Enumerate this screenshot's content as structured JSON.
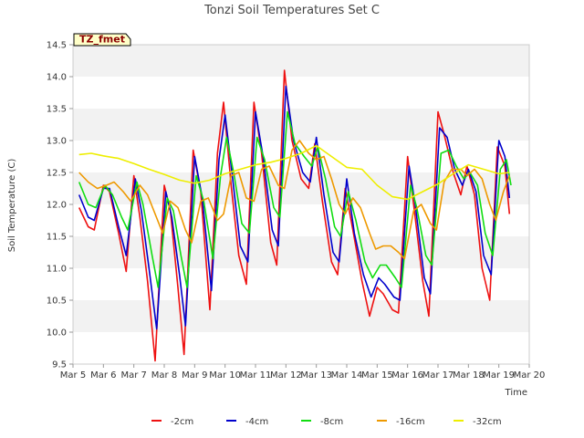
{
  "chart_data": {
    "type": "line",
    "title": "Tonzi Soil Temperatures Set C",
    "xlabel": "Time",
    "ylabel": "Soil Temperature (C)",
    "annotation": "TZ_fmet",
    "xlim": [
      5,
      20
    ],
    "ylim": [
      9.5,
      14.5
    ],
    "grid": "horizontal bands",
    "legend_placement": "bottom",
    "x_ticks": [
      {
        "value": 5,
        "label": "Mar 5"
      },
      {
        "value": 6,
        "label": "Mar 6"
      },
      {
        "value": 7,
        "label": "Mar 7"
      },
      {
        "value": 8,
        "label": "Mar 8"
      },
      {
        "value": 9,
        "label": "Mar 9"
      },
      {
        "value": 10,
        "label": "Mar 10"
      },
      {
        "value": 11,
        "label": "Mar 11"
      },
      {
        "value": 12,
        "label": "Mar 12"
      },
      {
        "value": 13,
        "label": "Mar 13"
      },
      {
        "value": 14,
        "label": "Mar 14"
      },
      {
        "value": 15,
        "label": "Mar 15"
      },
      {
        "value": 16,
        "label": "Mar 16"
      },
      {
        "value": 17,
        "label": "Mar 17"
      },
      {
        "value": 18,
        "label": "Mar 18"
      },
      {
        "value": 19,
        "label": "Mar 19"
      },
      {
        "value": 20,
        "label": "Mar 20"
      }
    ],
    "y_ticks": [
      {
        "value": 9.5,
        "label": "9.5"
      },
      {
        "value": 10.0,
        "label": "10.0"
      },
      {
        "value": 10.5,
        "label": "10.5"
      },
      {
        "value": 11.0,
        "label": "11.0"
      },
      {
        "value": 11.5,
        "label": "11.5"
      },
      {
        "value": 12.0,
        "label": "12.0"
      },
      {
        "value": 12.5,
        "label": "12.5"
      },
      {
        "value": 13.0,
        "label": "13.0"
      },
      {
        "value": 13.5,
        "label": "13.5"
      },
      {
        "value": 14.0,
        "label": "14.0"
      },
      {
        "value": 14.5,
        "label": "14.5"
      }
    ],
    "series": [
      {
        "name": "-2cm",
        "color": "#ee1111",
        "points": [
          [
            5.2,
            11.95
          ],
          [
            5.5,
            11.65
          ],
          [
            5.7,
            11.6
          ],
          [
            6.0,
            12.3
          ],
          [
            6.2,
            12.2
          ],
          [
            6.5,
            11.55
          ],
          [
            6.75,
            10.95
          ],
          [
            7.0,
            12.45
          ],
          [
            7.2,
            11.8
          ],
          [
            7.45,
            10.8
          ],
          [
            7.7,
            9.55
          ],
          [
            8.0,
            12.3
          ],
          [
            8.2,
            11.9
          ],
          [
            8.45,
            10.7
          ],
          [
            8.65,
            9.65
          ],
          [
            8.95,
            12.85
          ],
          [
            9.2,
            12.2
          ],
          [
            9.5,
            10.35
          ],
          [
            9.75,
            12.8
          ],
          [
            9.95,
            13.6
          ],
          [
            10.2,
            12.3
          ],
          [
            10.45,
            11.2
          ],
          [
            10.7,
            10.75
          ],
          [
            10.95,
            13.6
          ],
          [
            11.2,
            12.8
          ],
          [
            11.5,
            11.4
          ],
          [
            11.7,
            11.05
          ],
          [
            11.95,
            14.1
          ],
          [
            12.2,
            13.0
          ],
          [
            12.5,
            12.4
          ],
          [
            12.75,
            12.25
          ],
          [
            12.95,
            12.95
          ],
          [
            13.2,
            12.05
          ],
          [
            13.5,
            11.1
          ],
          [
            13.7,
            10.9
          ],
          [
            13.95,
            12.25
          ],
          [
            14.2,
            11.6
          ],
          [
            14.5,
            10.8
          ],
          [
            14.75,
            10.25
          ],
          [
            15.0,
            10.7
          ],
          [
            15.2,
            10.6
          ],
          [
            15.5,
            10.35
          ],
          [
            15.7,
            10.3
          ],
          [
            16.0,
            12.75
          ],
          [
            16.2,
            12.0
          ],
          [
            16.5,
            10.8
          ],
          [
            16.7,
            10.25
          ],
          [
            17.0,
            13.45
          ],
          [
            17.2,
            13.1
          ],
          [
            17.5,
            12.5
          ],
          [
            17.75,
            12.15
          ],
          [
            17.95,
            12.6
          ],
          [
            18.2,
            12.15
          ],
          [
            18.45,
            11.0
          ],
          [
            18.7,
            10.5
          ],
          [
            18.95,
            12.9
          ],
          [
            19.2,
            12.6
          ],
          [
            19.35,
            11.85
          ]
        ]
      },
      {
        "name": "-4cm",
        "color": "#0000cc",
        "points": [
          [
            5.2,
            12.15
          ],
          [
            5.5,
            11.8
          ],
          [
            5.7,
            11.75
          ],
          [
            6.0,
            12.25
          ],
          [
            6.2,
            12.25
          ],
          [
            6.5,
            11.65
          ],
          [
            6.75,
            11.2
          ],
          [
            7.05,
            12.4
          ],
          [
            7.25,
            11.9
          ],
          [
            7.5,
            11.0
          ],
          [
            7.75,
            10.05
          ],
          [
            8.05,
            12.2
          ],
          [
            8.25,
            11.8
          ],
          [
            8.5,
            10.9
          ],
          [
            8.7,
            10.1
          ],
          [
            9.0,
            12.75
          ],
          [
            9.25,
            12.1
          ],
          [
            9.55,
            10.65
          ],
          [
            9.8,
            12.7
          ],
          [
            10.0,
            13.4
          ],
          [
            10.25,
            12.4
          ],
          [
            10.5,
            11.35
          ],
          [
            10.75,
            11.1
          ],
          [
            11.0,
            13.45
          ],
          [
            11.25,
            12.75
          ],
          [
            11.55,
            11.6
          ],
          [
            11.75,
            11.35
          ],
          [
            12.0,
            13.85
          ],
          [
            12.25,
            13.0
          ],
          [
            12.55,
            12.5
          ],
          [
            12.8,
            12.35
          ],
          [
            13.0,
            13.05
          ],
          [
            13.25,
            12.15
          ],
          [
            13.55,
            11.25
          ],
          [
            13.75,
            11.1
          ],
          [
            14.0,
            12.4
          ],
          [
            14.25,
            11.55
          ],
          [
            14.55,
            10.9
          ],
          [
            14.8,
            10.55
          ],
          [
            15.05,
            10.85
          ],
          [
            15.25,
            10.75
          ],
          [
            15.55,
            10.55
          ],
          [
            15.75,
            10.5
          ],
          [
            16.05,
            12.6
          ],
          [
            16.25,
            12.0
          ],
          [
            16.55,
            10.85
          ],
          [
            16.75,
            10.6
          ],
          [
            17.05,
            13.2
          ],
          [
            17.3,
            13.05
          ],
          [
            17.55,
            12.55
          ],
          [
            17.8,
            12.3
          ],
          [
            18.0,
            12.55
          ],
          [
            18.25,
            12.2
          ],
          [
            18.5,
            11.2
          ],
          [
            18.75,
            10.9
          ],
          [
            19.0,
            13.0
          ],
          [
            19.2,
            12.75
          ],
          [
            19.35,
            12.1
          ]
        ]
      },
      {
        "name": "-8cm",
        "color": "#11dd11",
        "points": [
          [
            5.2,
            12.35
          ],
          [
            5.5,
            12.0
          ],
          [
            5.75,
            11.95
          ],
          [
            6.05,
            12.3
          ],
          [
            6.3,
            12.15
          ],
          [
            6.6,
            11.8
          ],
          [
            6.8,
            11.6
          ],
          [
            7.1,
            12.35
          ],
          [
            7.3,
            12.0
          ],
          [
            7.6,
            11.2
          ],
          [
            7.8,
            10.7
          ],
          [
            8.1,
            12.1
          ],
          [
            8.3,
            11.9
          ],
          [
            8.55,
            11.2
          ],
          [
            8.75,
            10.7
          ],
          [
            9.05,
            12.45
          ],
          [
            9.3,
            12.05
          ],
          [
            9.6,
            11.15
          ],
          [
            9.85,
            12.45
          ],
          [
            10.05,
            13.05
          ],
          [
            10.3,
            12.45
          ],
          [
            10.55,
            11.7
          ],
          [
            10.8,
            11.55
          ],
          [
            11.05,
            13.05
          ],
          [
            11.3,
            12.7
          ],
          [
            11.6,
            11.95
          ],
          [
            11.8,
            11.8
          ],
          [
            12.05,
            13.45
          ],
          [
            12.3,
            12.95
          ],
          [
            12.6,
            12.75
          ],
          [
            12.85,
            12.6
          ],
          [
            13.05,
            12.9
          ],
          [
            13.3,
            12.4
          ],
          [
            13.6,
            11.65
          ],
          [
            13.8,
            11.5
          ],
          [
            14.05,
            12.2
          ],
          [
            14.3,
            11.75
          ],
          [
            14.6,
            11.1
          ],
          [
            14.85,
            10.85
          ],
          [
            15.1,
            11.05
          ],
          [
            15.3,
            11.05
          ],
          [
            15.6,
            10.85
          ],
          [
            15.8,
            10.7
          ],
          [
            16.1,
            12.3
          ],
          [
            16.3,
            11.95
          ],
          [
            16.6,
            11.2
          ],
          [
            16.8,
            11.05
          ],
          [
            17.1,
            12.8
          ],
          [
            17.35,
            12.85
          ],
          [
            17.6,
            12.6
          ],
          [
            17.85,
            12.4
          ],
          [
            18.05,
            12.5
          ],
          [
            18.3,
            12.3
          ],
          [
            18.55,
            11.55
          ],
          [
            18.8,
            11.2
          ],
          [
            19.05,
            12.55
          ],
          [
            19.25,
            12.7
          ],
          [
            19.4,
            12.3
          ]
        ]
      },
      {
        "name": "-16cm",
        "color": "#ee9900",
        "points": [
          [
            5.2,
            12.5
          ],
          [
            5.5,
            12.35
          ],
          [
            5.8,
            12.25
          ],
          [
            6.1,
            12.3
          ],
          [
            6.35,
            12.35
          ],
          [
            6.65,
            12.2
          ],
          [
            6.9,
            12.05
          ],
          [
            7.2,
            12.3
          ],
          [
            7.45,
            12.15
          ],
          [
            7.7,
            11.85
          ],
          [
            7.95,
            11.55
          ],
          [
            8.2,
            12.05
          ],
          [
            8.45,
            11.95
          ],
          [
            8.7,
            11.6
          ],
          [
            8.9,
            11.4
          ],
          [
            9.2,
            12.05
          ],
          [
            9.45,
            12.1
          ],
          [
            9.75,
            11.75
          ],
          [
            9.95,
            11.85
          ],
          [
            10.2,
            12.45
          ],
          [
            10.45,
            12.5
          ],
          [
            10.7,
            12.1
          ],
          [
            10.95,
            12.05
          ],
          [
            11.2,
            12.55
          ],
          [
            11.45,
            12.6
          ],
          [
            11.75,
            12.3
          ],
          [
            11.95,
            12.25
          ],
          [
            12.2,
            12.85
          ],
          [
            12.45,
            13.0
          ],
          [
            12.75,
            12.8
          ],
          [
            13.0,
            12.7
          ],
          [
            13.25,
            12.75
          ],
          [
            13.5,
            12.4
          ],
          [
            13.75,
            12.0
          ],
          [
            13.95,
            11.85
          ],
          [
            14.2,
            12.1
          ],
          [
            14.45,
            11.95
          ],
          [
            14.75,
            11.55
          ],
          [
            14.95,
            11.3
          ],
          [
            15.2,
            11.35
          ],
          [
            15.45,
            11.35
          ],
          [
            15.7,
            11.25
          ],
          [
            15.9,
            11.15
          ],
          [
            16.2,
            11.9
          ],
          [
            16.45,
            12.0
          ],
          [
            16.75,
            11.7
          ],
          [
            16.95,
            11.6
          ],
          [
            17.2,
            12.35
          ],
          [
            17.45,
            12.55
          ],
          [
            17.75,
            12.55
          ],
          [
            17.95,
            12.45
          ],
          [
            18.2,
            12.55
          ],
          [
            18.45,
            12.4
          ],
          [
            18.7,
            12.0
          ],
          [
            18.9,
            11.75
          ],
          [
            19.15,
            12.2
          ],
          [
            19.35,
            12.45
          ]
        ]
      },
      {
        "name": "-32cm",
        "color": "#eeee00",
        "points": [
          [
            5.2,
            12.78
          ],
          [
            5.6,
            12.8
          ],
          [
            6.0,
            12.76
          ],
          [
            6.5,
            12.72
          ],
          [
            7.0,
            12.64
          ],
          [
            7.5,
            12.55
          ],
          [
            8.0,
            12.47
          ],
          [
            8.5,
            12.38
          ],
          [
            9.0,
            12.33
          ],
          [
            9.5,
            12.38
          ],
          [
            10.0,
            12.48
          ],
          [
            10.5,
            12.55
          ],
          [
            11.0,
            12.62
          ],
          [
            11.5,
            12.66
          ],
          [
            12.0,
            12.72
          ],
          [
            12.5,
            12.8
          ],
          [
            13.0,
            12.92
          ],
          [
            13.5,
            12.75
          ],
          [
            14.0,
            12.58
          ],
          [
            14.5,
            12.55
          ],
          [
            15.0,
            12.3
          ],
          [
            15.5,
            12.12
          ],
          [
            16.0,
            12.08
          ],
          [
            16.5,
            12.2
          ],
          [
            17.0,
            12.32
          ],
          [
            17.5,
            12.48
          ],
          [
            18.0,
            12.62
          ],
          [
            18.5,
            12.55
          ],
          [
            19.0,
            12.48
          ],
          [
            19.35,
            12.5
          ]
        ]
      }
    ]
  }
}
